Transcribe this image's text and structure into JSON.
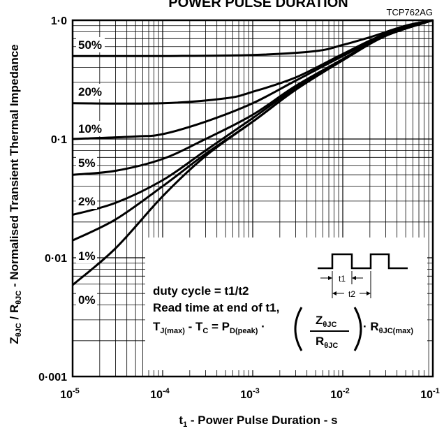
{
  "chart_data": {
    "type": "line",
    "title": "POWER PULSE DURATION",
    "code": "TCP762AG",
    "xlabel": "t1 - Power Pulse Duration - s",
    "ylabel": "ZθJC / RθJC - Normalised Transient Thermal Impedance",
    "x_scale": "log",
    "y_scale": "log",
    "xlim": [
      1e-05,
      0.1
    ],
    "ylim": [
      0.001,
      1.0
    ],
    "grid": true,
    "x_ticks": [
      {
        "value": 1e-05,
        "base": "10",
        "exp": "-5"
      },
      {
        "value": 0.0001,
        "base": "10",
        "exp": "-4"
      },
      {
        "value": 0.001,
        "base": "10",
        "exp": "-3"
      },
      {
        "value": 0.01,
        "base": "10",
        "exp": "-2"
      },
      {
        "value": 0.1,
        "base": "10",
        "exp": "-1"
      }
    ],
    "y_ticks": [
      {
        "value": 1.0,
        "label": "1·0"
      },
      {
        "value": 0.1,
        "label": "0·1"
      },
      {
        "value": 0.01,
        "label": "0·01"
      },
      {
        "value": 0.001,
        "label": "0·001"
      }
    ],
    "series": [
      {
        "name": "50%",
        "x": [
          1e-05,
          0.0001,
          0.001,
          0.005,
          0.01,
          0.02,
          0.05,
          0.1
        ],
        "y": [
          0.5,
          0.5,
          0.51,
          0.55,
          0.62,
          0.72,
          0.9,
          1.0
        ]
      },
      {
        "name": "20%",
        "x": [
          1e-05,
          0.0001,
          0.0005,
          0.001,
          0.003,
          0.01,
          0.03,
          0.1
        ],
        "y": [
          0.2,
          0.2,
          0.22,
          0.25,
          0.33,
          0.52,
          0.77,
          1.0
        ]
      },
      {
        "name": "10%",
        "x": [
          1e-05,
          5e-05,
          0.0001,
          0.0003,
          0.001,
          0.003,
          0.01,
          0.03,
          0.1
        ],
        "y": [
          0.1,
          0.105,
          0.11,
          0.14,
          0.2,
          0.31,
          0.5,
          0.76,
          1.0
        ]
      },
      {
        "name": "5%",
        "x": [
          1e-05,
          3e-05,
          0.0001,
          0.0003,
          0.001,
          0.003,
          0.01,
          0.03,
          0.1
        ],
        "y": [
          0.05,
          0.054,
          0.068,
          0.1,
          0.16,
          0.28,
          0.47,
          0.75,
          1.0
        ]
      },
      {
        "name": "2%",
        "x": [
          1e-05,
          3e-05,
          0.0001,
          0.0003,
          0.001,
          0.003,
          0.01,
          0.03,
          0.1
        ],
        "y": [
          0.023,
          0.029,
          0.045,
          0.08,
          0.15,
          0.27,
          0.47,
          0.74,
          1.0
        ]
      },
      {
        "name": "1%",
        "x": [
          1e-05,
          3e-05,
          0.0001,
          0.0003,
          0.001,
          0.003,
          0.01,
          0.03,
          0.1
        ],
        "y": [
          0.014,
          0.021,
          0.04,
          0.075,
          0.14,
          0.26,
          0.46,
          0.74,
          1.0
        ]
      },
      {
        "name": "0%",
        "x": [
          1e-05,
          3e-05,
          0.0001,
          0.0003,
          0.001,
          0.003,
          0.01,
          0.03,
          0.1
        ],
        "y": [
          0.0059,
          0.012,
          0.033,
          0.072,
          0.14,
          0.26,
          0.46,
          0.74,
          1.0
        ]
      }
    ],
    "annotations": {
      "line1": "duty cycle = t1/t2",
      "line2": "Read time at end of t1,",
      "t1": "t1",
      "t2": "t2"
    }
  }
}
